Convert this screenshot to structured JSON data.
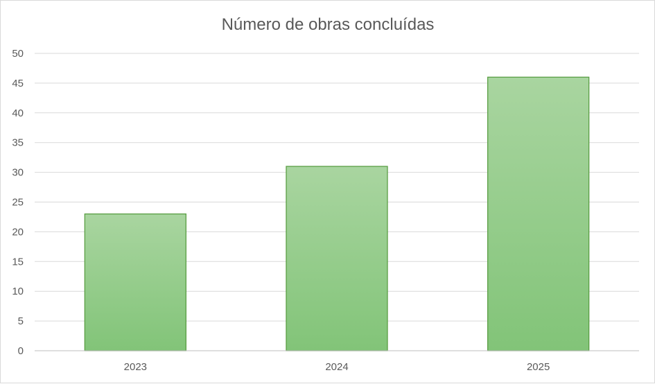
{
  "chart_data": {
    "type": "bar",
    "title": "Número de obras concluídas",
    "categories": [
      "2023",
      "2024",
      "2025"
    ],
    "values": [
      23,
      31,
      46
    ],
    "xlabel": "",
    "ylabel": "",
    "ylim": [
      0,
      50
    ],
    "yticks": [
      "0",
      "5",
      "10",
      "15",
      "20",
      "25",
      "30",
      "35",
      "40",
      "45",
      "50"
    ],
    "grid": true,
    "legend": "none",
    "colors": {
      "bar_fill_top": "#a9d5a0",
      "bar_fill_bottom": "#82c478",
      "bar_stroke": "#5a9e44",
      "text": "#595959",
      "grid": "#d9d9d9"
    }
  }
}
